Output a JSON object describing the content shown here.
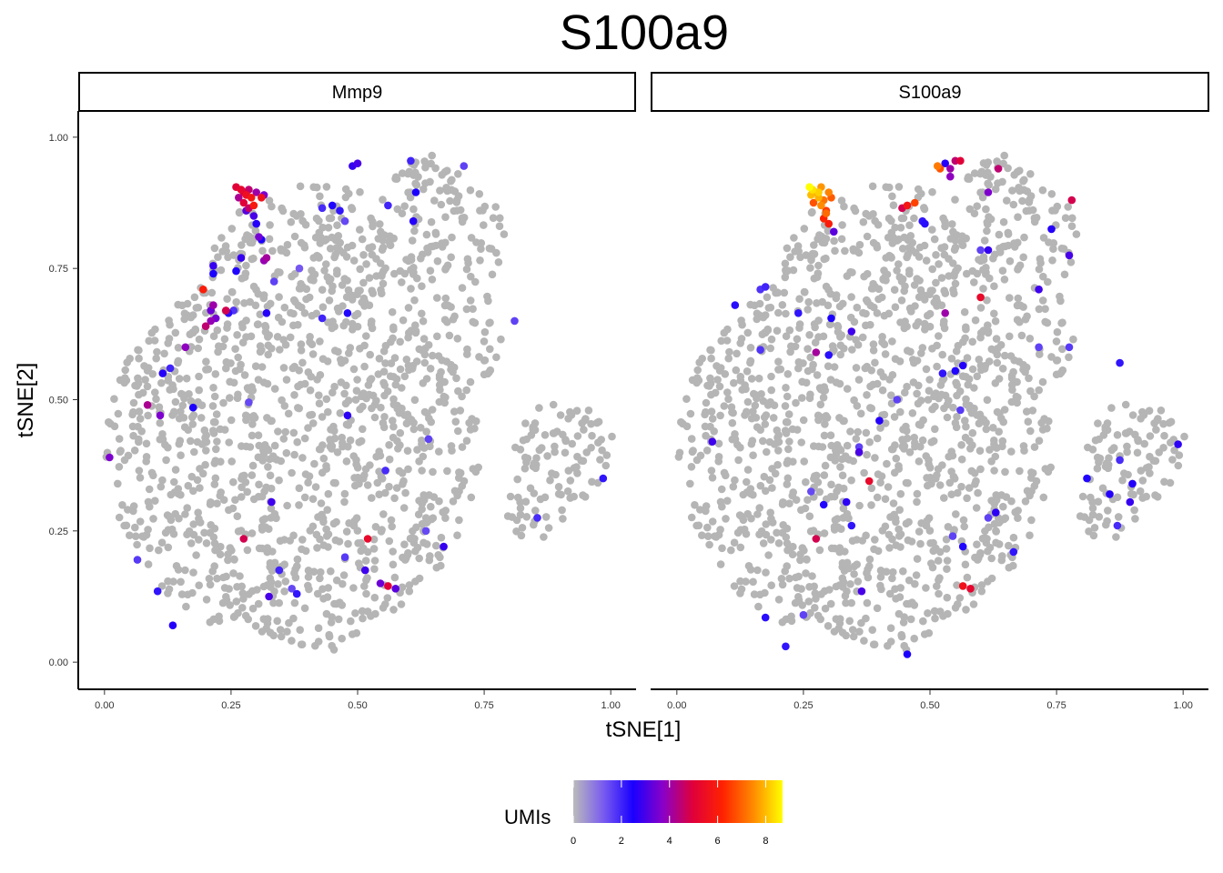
{
  "chart_data": {
    "type": "scatter",
    "title": "S100a9",
    "xlabel": "tSNE[1]",
    "ylabel": "tSNE[2]",
    "xlim": [
      -0.05,
      1.05
    ],
    "ylim": [
      -0.05,
      1.05
    ],
    "x_ticks": [
      "0.00",
      "0.25",
      "0.50",
      "0.75",
      "1.00"
    ],
    "y_ticks": [
      "0.00",
      "0.25",
      "0.50",
      "0.75",
      "1.00"
    ],
    "grid": false,
    "legend": {
      "title": "UMIs",
      "position": "bottom",
      "range": [
        0,
        8.7
      ],
      "ticks": [
        "0",
        "2",
        "4",
        "6",
        "8"
      ],
      "colors": [
        "#bbbbbb",
        "#7a5cf0",
        "#1a00ff",
        "#8a00c8",
        "#e0003a",
        "#ff2200",
        "#ff8800",
        "#ffff00"
      ]
    },
    "background_color": "#b5b5b5",
    "facets": [
      {
        "name": "Mmp9",
        "expressing_cells": [
          {
            "x": 0.26,
            "y": 0.905,
            "v": 5
          },
          {
            "x": 0.27,
            "y": 0.9,
            "v": 5.2
          },
          {
            "x": 0.275,
            "y": 0.895,
            "v": 4.8
          },
          {
            "x": 0.28,
            "y": 0.89,
            "v": 5.5
          },
          {
            "x": 0.285,
            "y": 0.9,
            "v": 4.5
          },
          {
            "x": 0.29,
            "y": 0.885,
            "v": 5.8
          },
          {
            "x": 0.265,
            "y": 0.885,
            "v": 4.2
          },
          {
            "x": 0.275,
            "y": 0.875,
            "v": 5
          },
          {
            "x": 0.285,
            "y": 0.865,
            "v": 4.6
          },
          {
            "x": 0.295,
            "y": 0.87,
            "v": 5.9
          },
          {
            "x": 0.3,
            "y": 0.895,
            "v": 4
          },
          {
            "x": 0.31,
            "y": 0.885,
            "v": 5.6
          },
          {
            "x": 0.315,
            "y": 0.89,
            "v": 3.6
          },
          {
            "x": 0.28,
            "y": 0.86,
            "v": 3.2
          },
          {
            "x": 0.295,
            "y": 0.85,
            "v": 3
          },
          {
            "x": 0.3,
            "y": 0.835,
            "v": 2.6
          },
          {
            "x": 0.305,
            "y": 0.81,
            "v": 3.5
          },
          {
            "x": 0.31,
            "y": 0.805,
            "v": 2.5
          },
          {
            "x": 0.315,
            "y": 0.765,
            "v": 3.9
          },
          {
            "x": 0.32,
            "y": 0.77,
            "v": 4.1
          },
          {
            "x": 0.27,
            "y": 0.77,
            "v": 2.8
          },
          {
            "x": 0.26,
            "y": 0.745,
            "v": 2.4
          },
          {
            "x": 0.215,
            "y": 0.755,
            "v": 2.8
          },
          {
            "x": 0.215,
            "y": 0.74,
            "v": 2.5
          },
          {
            "x": 0.195,
            "y": 0.71,
            "v": 6
          },
          {
            "x": 0.21,
            "y": 0.67,
            "v": 3.4
          },
          {
            "x": 0.215,
            "y": 0.68,
            "v": 4
          },
          {
            "x": 0.2,
            "y": 0.64,
            "v": 4.5
          },
          {
            "x": 0.21,
            "y": 0.65,
            "v": 3.9
          },
          {
            "x": 0.22,
            "y": 0.655,
            "v": 3.5
          },
          {
            "x": 0.245,
            "y": 0.665,
            "v": 2.3
          },
          {
            "x": 0.255,
            "y": 0.67,
            "v": 1.8
          },
          {
            "x": 0.24,
            "y": 0.67,
            "v": 4.8
          },
          {
            "x": 0.32,
            "y": 0.665,
            "v": 2.6
          },
          {
            "x": 0.335,
            "y": 0.725,
            "v": 1.6
          },
          {
            "x": 0.385,
            "y": 0.75,
            "v": 1.3
          },
          {
            "x": 0.43,
            "y": 0.655,
            "v": 2
          },
          {
            "x": 0.48,
            "y": 0.665,
            "v": 2.4
          },
          {
            "x": 0.16,
            "y": 0.6,
            "v": 3.8
          },
          {
            "x": 0.13,
            "y": 0.56,
            "v": 2
          },
          {
            "x": 0.115,
            "y": 0.55,
            "v": 2.6
          },
          {
            "x": 0.085,
            "y": 0.49,
            "v": 4.2
          },
          {
            "x": 0.11,
            "y": 0.47,
            "v": 3.6
          },
          {
            "x": 0.175,
            "y": 0.485,
            "v": 2.5
          },
          {
            "x": 0.01,
            "y": 0.39,
            "v": 3.6
          },
          {
            "x": 0.285,
            "y": 0.495,
            "v": 1.5
          },
          {
            "x": 0.48,
            "y": 0.47,
            "v": 2.7
          },
          {
            "x": 0.33,
            "y": 0.305,
            "v": 2.9
          },
          {
            "x": 0.555,
            "y": 0.365,
            "v": 1.9
          },
          {
            "x": 0.64,
            "y": 0.425,
            "v": 1.6
          },
          {
            "x": 0.275,
            "y": 0.235,
            "v": 4.8
          },
          {
            "x": 0.52,
            "y": 0.235,
            "v": 5.3
          },
          {
            "x": 0.475,
            "y": 0.2,
            "v": 1.7
          },
          {
            "x": 0.635,
            "y": 0.25,
            "v": 1.5
          },
          {
            "x": 0.67,
            "y": 0.22,
            "v": 2.8
          },
          {
            "x": 0.065,
            "y": 0.195,
            "v": 1.7
          },
          {
            "x": 0.105,
            "y": 0.135,
            "v": 2.2
          },
          {
            "x": 0.135,
            "y": 0.07,
            "v": 2.6
          },
          {
            "x": 0.345,
            "y": 0.175,
            "v": 2
          },
          {
            "x": 0.325,
            "y": 0.125,
            "v": 3
          },
          {
            "x": 0.37,
            "y": 0.14,
            "v": 1.5
          },
          {
            "x": 0.38,
            "y": 0.13,
            "v": 2.2
          },
          {
            "x": 0.515,
            "y": 0.175,
            "v": 2.9
          },
          {
            "x": 0.545,
            "y": 0.15,
            "v": 3.4
          },
          {
            "x": 0.56,
            "y": 0.145,
            "v": 5
          },
          {
            "x": 0.575,
            "y": 0.14,
            "v": 3.2
          },
          {
            "x": 0.49,
            "y": 0.945,
            "v": 2.8
          },
          {
            "x": 0.5,
            "y": 0.95,
            "v": 3
          },
          {
            "x": 0.605,
            "y": 0.955,
            "v": 2
          },
          {
            "x": 0.71,
            "y": 0.945,
            "v": 1.6
          },
          {
            "x": 0.615,
            "y": 0.895,
            "v": 2.5
          },
          {
            "x": 0.56,
            "y": 0.87,
            "v": 2
          },
          {
            "x": 0.45,
            "y": 0.87,
            "v": 2.4
          },
          {
            "x": 0.465,
            "y": 0.86,
            "v": 2.2
          },
          {
            "x": 0.43,
            "y": 0.865,
            "v": 1.9
          },
          {
            "x": 0.475,
            "y": 0.84,
            "v": 1.5
          },
          {
            "x": 0.61,
            "y": 0.84,
            "v": 2.6
          },
          {
            "x": 0.81,
            "y": 0.65,
            "v": 1.6
          },
          {
            "x": 0.855,
            "y": 0.275,
            "v": 1.9
          },
          {
            "x": 0.985,
            "y": 0.35,
            "v": 2.2
          }
        ]
      },
      {
        "name": "S100a9",
        "expressing_cells": [
          {
            "x": 0.262,
            "y": 0.905,
            "v": 8.7
          },
          {
            "x": 0.268,
            "y": 0.9,
            "v": 8.4
          },
          {
            "x": 0.275,
            "y": 0.895,
            "v": 7.8
          },
          {
            "x": 0.285,
            "y": 0.905,
            "v": 7.6
          },
          {
            "x": 0.28,
            "y": 0.885,
            "v": 7.9
          },
          {
            "x": 0.29,
            "y": 0.88,
            "v": 7.2
          },
          {
            "x": 0.27,
            "y": 0.875,
            "v": 6.8
          },
          {
            "x": 0.285,
            "y": 0.87,
            "v": 7.5
          },
          {
            "x": 0.295,
            "y": 0.86,
            "v": 6.5
          },
          {
            "x": 0.3,
            "y": 0.895,
            "v": 7.4
          },
          {
            "x": 0.305,
            "y": 0.885,
            "v": 6.9
          },
          {
            "x": 0.29,
            "y": 0.845,
            "v": 6.2
          },
          {
            "x": 0.3,
            "y": 0.835,
            "v": 6
          },
          {
            "x": 0.295,
            "y": 0.855,
            "v": 7.1
          },
          {
            "x": 0.31,
            "y": 0.82,
            "v": 3.2
          },
          {
            "x": 0.28,
            "y": 0.895,
            "v": 8.2
          },
          {
            "x": 0.265,
            "y": 0.89,
            "v": 8
          },
          {
            "x": 0.515,
            "y": 0.945,
            "v": 7.3
          },
          {
            "x": 0.52,
            "y": 0.94,
            "v": 6.8
          },
          {
            "x": 0.53,
            "y": 0.95,
            "v": 2.6
          },
          {
            "x": 0.54,
            "y": 0.94,
            "v": 4
          },
          {
            "x": 0.55,
            "y": 0.955,
            "v": 4.5
          },
          {
            "x": 0.56,
            "y": 0.955,
            "v": 5
          },
          {
            "x": 0.54,
            "y": 0.925,
            "v": 3.8
          },
          {
            "x": 0.635,
            "y": 0.94,
            "v": 4.5
          },
          {
            "x": 0.615,
            "y": 0.895,
            "v": 3.6
          },
          {
            "x": 0.78,
            "y": 0.88,
            "v": 4.8
          },
          {
            "x": 0.445,
            "y": 0.865,
            "v": 4.8
          },
          {
            "x": 0.455,
            "y": 0.87,
            "v": 5.8
          },
          {
            "x": 0.47,
            "y": 0.875,
            "v": 6.6
          },
          {
            "x": 0.485,
            "y": 0.84,
            "v": 2.2
          },
          {
            "x": 0.49,
            "y": 0.835,
            "v": 2.3
          },
          {
            "x": 0.6,
            "y": 0.785,
            "v": 1.6
          },
          {
            "x": 0.615,
            "y": 0.785,
            "v": 2.8
          },
          {
            "x": 0.74,
            "y": 0.825,
            "v": 2.6
          },
          {
            "x": 0.775,
            "y": 0.775,
            "v": 3
          },
          {
            "x": 0.715,
            "y": 0.71,
            "v": 2.9
          },
          {
            "x": 0.6,
            "y": 0.695,
            "v": 5.3
          },
          {
            "x": 0.53,
            "y": 0.665,
            "v": 4
          },
          {
            "x": 0.165,
            "y": 0.71,
            "v": 1.8
          },
          {
            "x": 0.175,
            "y": 0.715,
            "v": 2
          },
          {
            "x": 0.115,
            "y": 0.68,
            "v": 2.3
          },
          {
            "x": 0.24,
            "y": 0.665,
            "v": 2.2
          },
          {
            "x": 0.305,
            "y": 0.655,
            "v": 2.5
          },
          {
            "x": 0.345,
            "y": 0.63,
            "v": 2.9
          },
          {
            "x": 0.275,
            "y": 0.59,
            "v": 4.1
          },
          {
            "x": 0.3,
            "y": 0.585,
            "v": 2.3
          },
          {
            "x": 0.165,
            "y": 0.595,
            "v": 1.8
          },
          {
            "x": 0.55,
            "y": 0.555,
            "v": 2.4
          },
          {
            "x": 0.525,
            "y": 0.55,
            "v": 2.2
          },
          {
            "x": 0.565,
            "y": 0.565,
            "v": 2.6
          },
          {
            "x": 0.715,
            "y": 0.6,
            "v": 1.6
          },
          {
            "x": 0.775,
            "y": 0.6,
            "v": 1.7
          },
          {
            "x": 0.875,
            "y": 0.57,
            "v": 2.2
          },
          {
            "x": 0.435,
            "y": 0.5,
            "v": 1.6
          },
          {
            "x": 0.4,
            "y": 0.46,
            "v": 2.6
          },
          {
            "x": 0.56,
            "y": 0.48,
            "v": 1.7
          },
          {
            "x": 0.07,
            "y": 0.42,
            "v": 2.9
          },
          {
            "x": 0.36,
            "y": 0.41,
            "v": 1.6
          },
          {
            "x": 0.36,
            "y": 0.4,
            "v": 3
          },
          {
            "x": 0.38,
            "y": 0.345,
            "v": 5.3
          },
          {
            "x": 0.265,
            "y": 0.325,
            "v": 1.5
          },
          {
            "x": 0.29,
            "y": 0.3,
            "v": 2.4
          },
          {
            "x": 0.335,
            "y": 0.305,
            "v": 2.7
          },
          {
            "x": 0.63,
            "y": 0.285,
            "v": 2.7
          },
          {
            "x": 0.615,
            "y": 0.275,
            "v": 1.6
          },
          {
            "x": 0.875,
            "y": 0.385,
            "v": 1.9
          },
          {
            "x": 0.9,
            "y": 0.34,
            "v": 2.6
          },
          {
            "x": 0.895,
            "y": 0.305,
            "v": 2.8
          },
          {
            "x": 0.855,
            "y": 0.32,
            "v": 2.6
          },
          {
            "x": 0.81,
            "y": 0.35,
            "v": 2.4
          },
          {
            "x": 0.99,
            "y": 0.415,
            "v": 2.7
          },
          {
            "x": 0.87,
            "y": 0.26,
            "v": 1.9
          },
          {
            "x": 0.345,
            "y": 0.26,
            "v": 2.2
          },
          {
            "x": 0.275,
            "y": 0.235,
            "v": 4.8
          },
          {
            "x": 0.565,
            "y": 0.22,
            "v": 2.4
          },
          {
            "x": 0.545,
            "y": 0.24,
            "v": 1.6
          },
          {
            "x": 0.665,
            "y": 0.21,
            "v": 2.2
          },
          {
            "x": 0.365,
            "y": 0.135,
            "v": 3
          },
          {
            "x": 0.565,
            "y": 0.145,
            "v": 5.6
          },
          {
            "x": 0.58,
            "y": 0.14,
            "v": 5.2
          },
          {
            "x": 0.175,
            "y": 0.085,
            "v": 2.3
          },
          {
            "x": 0.215,
            "y": 0.03,
            "v": 2.2
          },
          {
            "x": 0.455,
            "y": 0.015,
            "v": 2.5
          },
          {
            "x": 0.25,
            "y": 0.09,
            "v": 1.6
          }
        ]
      }
    ]
  }
}
